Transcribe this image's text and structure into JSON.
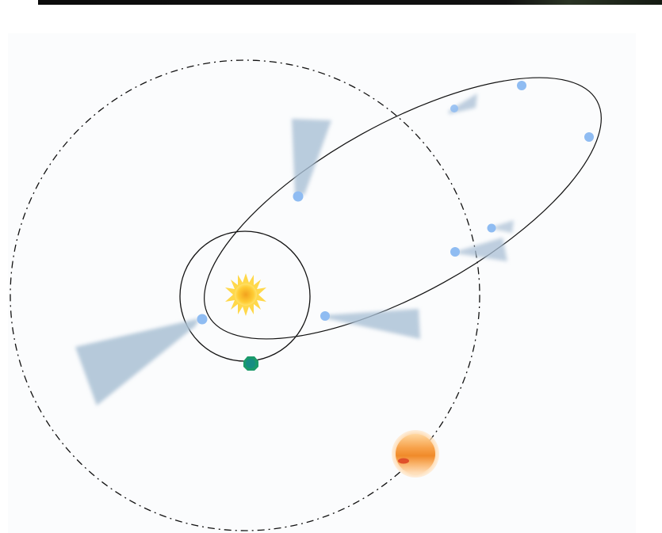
{
  "diagram": {
    "description_free": true,
    "colors": {
      "background": "#ffffff",
      "panel": "#fbfcfd",
      "orbit_line": "#111111",
      "sun_outer": "#ffd84a",
      "sun_core": "#f2a21e",
      "earth": "#1a9a6a",
      "comet_nucleus": "#8fbcf2",
      "comet_tail": "#a9bfd4",
      "planet_light": "#ffd9a8",
      "planet_band": "#f08a2a",
      "planet_spot": "#e0502a"
    },
    "icons": {
      "sun": "sun-icon",
      "earth": "earth-icon",
      "planet": "outer-planet-icon",
      "comet": "comet-icon"
    }
  }
}
